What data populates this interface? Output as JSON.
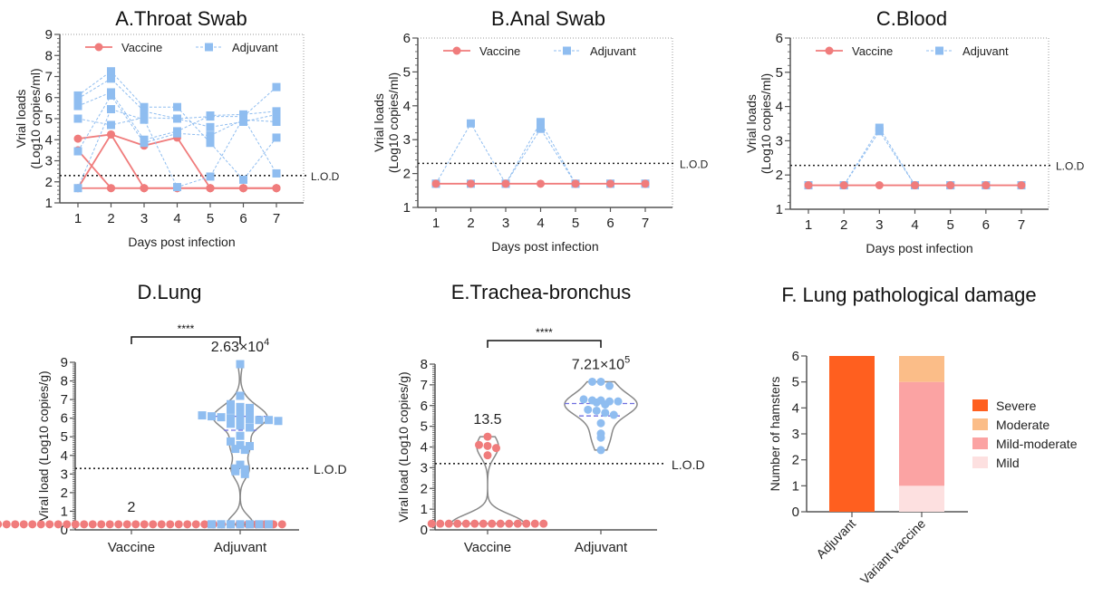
{
  "colors": {
    "vaccine": "#f07c7c",
    "adjuvant": "#8fbdf0",
    "axis": "#555555",
    "violin": "#888888",
    "median": "#6f6fe0",
    "severe": "#ff5f1f",
    "moderate": "#fbbd88",
    "mild_moderate": "#fba3a3",
    "mild": "#fde0e0"
  },
  "chart_data": [
    {
      "id": "A",
      "type": "line",
      "title": "A.Throat Swab",
      "xlabel": "Days post infection",
      "ylabel": [
        "Vrial loads",
        "(Log10 copies/ml)"
      ],
      "x": [
        1,
        2,
        3,
        4,
        5,
        6,
        7
      ],
      "ylim": [
        1,
        9
      ],
      "yticks": [
        1,
        2,
        3,
        4,
        5,
        6,
        7,
        8,
        9
      ],
      "lod": 2.3,
      "lod_label": "L.O.D",
      "legend": [
        {
          "name": "Vaccine",
          "style": "solid",
          "marker": "circle"
        },
        {
          "name": "Adjuvant",
          "style": "dashed",
          "marker": "square"
        }
      ],
      "series": [
        {
          "name": "Vaccine",
          "values": [
            4.05,
            4.25,
            3.72,
            4.1,
            1.7,
            1.7,
            1.7
          ]
        },
        {
          "name": "Vaccine",
          "values": [
            3.5,
            1.7,
            1.7,
            1.7,
            1.7,
            1.7,
            1.7
          ]
        },
        {
          "name": "Vaccine",
          "values": [
            1.7,
            4.25,
            1.7,
            1.7,
            1.7,
            1.7,
            1.7
          ]
        },
        {
          "name": "Vaccine",
          "values": [
            1.7,
            1.7,
            1.7,
            1.7,
            1.7,
            1.7,
            1.7
          ]
        },
        {
          "name": "Adjuvant",
          "values": [
            6.1,
            7.25,
            5.55,
            5.55,
            3.85,
            2.1,
            4.1
          ]
        },
        {
          "name": "Adjuvant",
          "values": [
            5.95,
            6.9,
            5.35,
            5.0,
            5.1,
            5.1,
            6.5
          ]
        },
        {
          "name": "Adjuvant",
          "values": [
            5.6,
            6.25,
            4.0,
            4.4,
            5.15,
            5.2,
            5.35
          ]
        },
        {
          "name": "Adjuvant",
          "values": [
            5.0,
            4.7,
            5.05,
            5.0,
            4.6,
            4.85,
            5.2
          ]
        },
        {
          "name": "Adjuvant",
          "values": [
            3.45,
            6.1,
            3.85,
            4.3,
            4.2,
            4.95,
            4.85
          ]
        },
        {
          "name": "Adjuvant",
          "values": [
            1.7,
            5.45,
            4.95,
            1.75,
            2.25,
            5.05,
            2.4
          ]
        }
      ]
    },
    {
      "id": "B",
      "type": "line",
      "title": "B.Anal Swab",
      "xlabel": "Days post infection",
      "ylabel": [
        "Vrial loads",
        "(Log10 copies/ml)"
      ],
      "x": [
        1,
        2,
        3,
        4,
        5,
        6,
        7
      ],
      "ylim": [
        1,
        6
      ],
      "yticks": [
        1,
        2,
        3,
        4,
        5,
        6
      ],
      "lod": 2.3,
      "lod_label": "L.O.D",
      "legend": [
        {
          "name": "Vaccine",
          "style": "solid",
          "marker": "circle"
        },
        {
          "name": "Adjuvant",
          "style": "dashed",
          "marker": "square"
        }
      ],
      "series": [
        {
          "name": "Adjuvant",
          "values": [
            1.7,
            3.48,
            1.7,
            3.52,
            1.7,
            1.7,
            1.7
          ]
        },
        {
          "name": "Adjuvant",
          "values": [
            1.7,
            1.7,
            1.7,
            3.32,
            1.7,
            1.7,
            1.7
          ]
        },
        {
          "name": "Vaccine",
          "values": [
            1.7,
            1.7,
            1.7,
            1.7,
            1.7,
            1.7,
            1.7
          ]
        }
      ]
    },
    {
      "id": "C",
      "type": "line",
      "title": "C.Blood",
      "xlabel": "Days post infection",
      "ylabel": [
        "Vrial loads",
        "(Log10 copies/ml)"
      ],
      "x": [
        1,
        2,
        3,
        4,
        5,
        6,
        7
      ],
      "ylim": [
        1,
        6
      ],
      "yticks": [
        1,
        2,
        3,
        4,
        5,
        6
      ],
      "lod": 2.28,
      "lod_label": "L.O.D",
      "legend": [
        {
          "name": "Vaccine",
          "style": "solid",
          "marker": "circle"
        },
        {
          "name": "Adjuvant",
          "style": "dashed",
          "marker": "square"
        }
      ],
      "series": [
        {
          "name": "Adjuvant",
          "values": [
            1.7,
            1.7,
            3.38,
            1.7,
            1.7,
            1.7,
            1.7
          ]
        },
        {
          "name": "Adjuvant",
          "values": [
            1.7,
            1.7,
            3.28,
            1.7,
            1.7,
            1.7,
            1.7
          ]
        },
        {
          "name": "Vaccine",
          "values": [
            1.7,
            1.7,
            1.7,
            1.7,
            1.7,
            1.7,
            1.7
          ]
        }
      ]
    },
    {
      "id": "D",
      "type": "scatter",
      "subtype": "violin",
      "title": "D.Lung",
      "ylabel": "Viral load (Log10 copies/g)",
      "categories": [
        "Vaccine",
        "Adjuvant"
      ],
      "ylim": [
        0,
        9
      ],
      "yticks": [
        0,
        1,
        2,
        3,
        4,
        5,
        6,
        7,
        8,
        9
      ],
      "lod": 3.3,
      "lod_label": "L.O.D",
      "significance": "****",
      "annotations": [
        {
          "group": "Vaccine",
          "text": "2",
          "sup": ""
        },
        {
          "group": "Adjuvant",
          "text": "2.63×10",
          "sup": "4"
        }
      ],
      "groups": [
        {
          "name": "Vaccine",
          "marker": "circle",
          "values": [
            0.3,
            0.3,
            0.3,
            0.3,
            0.3,
            0.3,
            0.3,
            0.3,
            0.3,
            0.3,
            0.3,
            0.3,
            0.3,
            0.3,
            0.3,
            0.3,
            0.3,
            0.3,
            0.3,
            0.3,
            0.3,
            0.3,
            0.3,
            0.3,
            0.3,
            0.3,
            0.3,
            0.3,
            0.3,
            0.3,
            0.3,
            0.3,
            0.3,
            0.3,
            0.3,
            0.3
          ]
        },
        {
          "name": "Adjuvant",
          "marker": "square",
          "median": 6.1,
          "quartile": 5.35,
          "values": [
            8.9,
            7.2,
            6.75,
            6.6,
            6.55,
            6.45,
            6.35,
            6.3,
            6.15,
            6.1,
            6.05,
            6.0,
            5.95,
            5.95,
            5.9,
            5.9,
            5.85,
            5.7,
            5.6,
            5.5,
            5.05,
            4.75,
            4.55,
            4.5,
            4.35,
            4.3,
            3.5,
            3.3,
            3.25,
            3.15,
            3.0,
            0.3,
            0.3,
            0.3,
            0.3,
            0.3,
            0.3,
            0.3
          ]
        }
      ]
    },
    {
      "id": "E",
      "type": "scatter",
      "subtype": "violin",
      "title": "E.Trachea-bronchus",
      "ylabel": "Viral load (Log10 copies/g)",
      "categories": [
        "Vaccine",
        "Adjuvant"
      ],
      "ylim": [
        0,
        8
      ],
      "yticks": [
        0,
        1,
        2,
        3,
        4,
        5,
        6,
        7,
        8
      ],
      "lod": 3.2,
      "lod_label": "L.O.D",
      "significance": "****",
      "annotations": [
        {
          "group": "Vaccine",
          "text": "13.5",
          "sup": ""
        },
        {
          "group": "Adjuvant",
          "text": "7.21×10",
          "sup": "5"
        }
      ],
      "groups": [
        {
          "name": "Vaccine",
          "marker": "circle",
          "values": [
            4.5,
            4.1,
            4.05,
            3.95,
            3.6,
            0.3,
            0.3,
            0.3,
            0.3,
            0.3,
            0.3,
            0.3,
            0.3,
            0.3,
            0.3,
            0.3,
            0.3,
            0.3,
            0.3
          ]
        },
        {
          "name": "Adjuvant",
          "marker": "circle",
          "median": 6.1,
          "quartile": 5.5,
          "values": [
            7.15,
            7.15,
            6.95,
            6.3,
            6.25,
            6.25,
            6.2,
            6.2,
            6.15,
            6.05,
            5.8,
            5.75,
            5.65,
            5.55,
            5.15,
            4.65,
            4.45,
            3.85
          ]
        }
      ]
    },
    {
      "id": "F",
      "type": "bar",
      "subtype": "stacked",
      "title": "F. Lung pathological damage",
      "ylabel": "Number of hamsters",
      "categories": [
        "Adjuvant",
        "Variant vaccine"
      ],
      "ylim": [
        0,
        6
      ],
      "yticks": [
        0,
        1,
        2,
        3,
        4,
        5,
        6
      ],
      "legend_position": "right",
      "series": [
        {
          "name": "Severe",
          "color_key": "severe",
          "values": [
            6,
            0
          ]
        },
        {
          "name": "Moderate",
          "color_key": "moderate",
          "values": [
            0,
            1
          ]
        },
        {
          "name": "Mild-moderate",
          "color_key": "mild_moderate",
          "values": [
            0,
            4
          ]
        },
        {
          "name": "Mild",
          "color_key": "mild",
          "values": [
            0,
            1
          ]
        }
      ],
      "stack_order": [
        "Mild",
        "Mild-moderate",
        "Moderate",
        "Severe"
      ]
    }
  ]
}
